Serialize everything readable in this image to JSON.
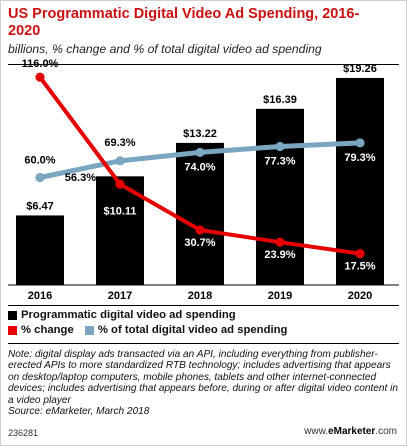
{
  "title": "US Programmatic Digital Video Ad Spending, 2016-2020",
  "subtitle": "billions, % change and % of total digital video ad spending",
  "chart_data": {
    "type": "bar",
    "categories": [
      "2016",
      "2017",
      "2018",
      "2019",
      "2020"
    ],
    "series": [
      {
        "name": "Programmatic digital video ad spending",
        "type": "bar",
        "values": [
          6.47,
          10.11,
          13.22,
          16.39,
          19.26
        ],
        "labels": [
          "$6.47",
          "$10.11",
          "$13.22",
          "$16.39",
          "$19.26"
        ],
        "color": "#000000"
      },
      {
        "name": "% change",
        "type": "line",
        "values": [
          116.0,
          56.3,
          30.7,
          23.9,
          17.5
        ],
        "labels": [
          "116.0%",
          "56.3%",
          "30.7%",
          "23.9%",
          "17.5%"
        ],
        "color": "#e60000"
      },
      {
        "name": "% of total digital video ad spending",
        "type": "line",
        "values": [
          60.0,
          69.3,
          74.0,
          77.3,
          79.3
        ],
        "labels": [
          "60.0%",
          "69.3%",
          "74.0%",
          "77.3%",
          "79.3%"
        ],
        "color": "#7aa6c2"
      }
    ],
    "bar_ylim": [
      0,
      20
    ],
    "pct_ylim": [
      0,
      120
    ],
    "grid": false,
    "legend_position": "bottom"
  },
  "legend": {
    "bars": "Programmatic digital video ad spending",
    "change": "% change",
    "share": "% of total digital video ad spending"
  },
  "note": "Note: digital display ads transacted via an API, including everything from publisher-erected APIs to more standardized RTB technology; includes advertising that appears on desktop/laptop computers, mobile phones, tablets and other internet-connected devices; includes advertising that appears before, during or after digital video content in a video player",
  "source": "Source: eMarketer, March 2018",
  "footer": {
    "id": "236281",
    "site_prefix": "www.",
    "site_brand": "eMarketer",
    "site_suffix": ".com"
  }
}
